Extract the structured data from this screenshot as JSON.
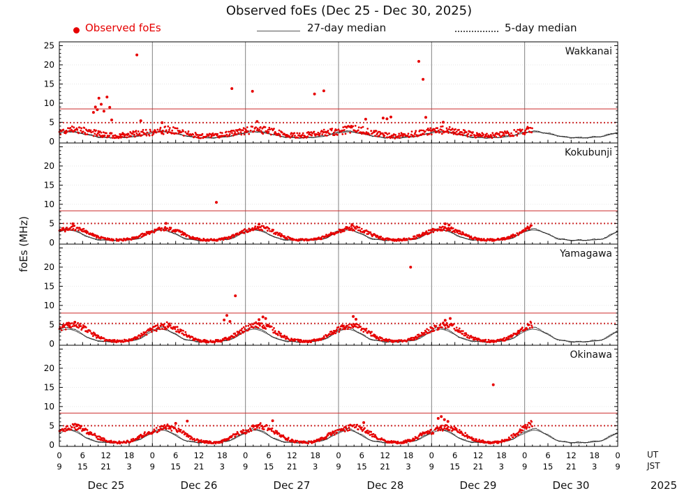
{
  "title": "Observed foEs (Dec 25 - Dec 30, 2025)",
  "ylabel": "foEs (MHz)",
  "legend": {
    "observed": "Observed foEs",
    "median27": "27-day median",
    "median5": "5-day median"
  },
  "colors": {
    "observed": "#e60000",
    "median27": "#555555",
    "median5": "#111111",
    "threshold": "#cc2a2a",
    "dayline": "#808080",
    "grid": "#e6e6e6",
    "frame": "#000000"
  },
  "x_axis": {
    "ut_label": "UT",
    "jst_label": "JST",
    "jst_offset": 9,
    "tick_step_hours": 6,
    "labeled_hours_ut": [
      0,
      6,
      12,
      18
    ],
    "labeled_hours_jst": [
      9,
      15,
      21,
      3
    ],
    "days": [
      "Dec 25",
      "Dec 26",
      "Dec 27",
      "Dec 28",
      "Dec 29",
      "Dec 30"
    ],
    "year": "2025",
    "total_hours": 144,
    "observed_end_hour": 122
  },
  "y_axis": {
    "min": 0,
    "max": 26,
    "unit": "MHz"
  },
  "chart_data": {
    "type": "scatter",
    "description": "Sporadic-E critical frequency foEs vs time, four ionosonde stations, red dots observed, black solid 27-day median, black dotted 5-day median, red horizontal lines are alert thresholds",
    "panels": [
      {
        "station": "Wakkanai",
        "scatter": 1.7,
        "threshold_solid_mhz": 8.5,
        "threshold_dotted_mhz": 4.9,
        "y_ticks": [
          0,
          5,
          10,
          15,
          20,
          25
        ],
        "observed_hourly": {
          "t_start": 0,
          "t_step": 2,
          "values": [
            2.6,
            3.0,
            3.2,
            2.9,
            2.4,
            2.0,
            1.7,
            1.5,
            1.6,
            1.8,
            2.0,
            2.3,
            2.4,
            2.8,
            3.0,
            2.7,
            2.2,
            1.8,
            1.5,
            1.4,
            1.5,
            1.7,
            2.1,
            2.4,
            2.7,
            3.1,
            3.0,
            2.8,
            2.3,
            1.9,
            1.6,
            1.5,
            1.7,
            1.9,
            2.2,
            2.5,
            2.5,
            3.0,
            3.3,
            3.0,
            2.5,
            2.0,
            1.6,
            1.4,
            1.5,
            1.8,
            2.1,
            2.4,
            2.6,
            2.9,
            3.1,
            2.8,
            2.3,
            1.9,
            1.6,
            1.5,
            1.6,
            1.8,
            2.0,
            2.3,
            2.8
          ]
        },
        "spikes": [
          [
            8.8,
            7.6
          ],
          [
            9.3,
            9.0
          ],
          [
            9.8,
            8.3
          ],
          [
            10.2,
            11.3
          ],
          [
            10.8,
            9.7
          ],
          [
            11.5,
            7.9
          ],
          [
            12.3,
            11.6
          ],
          [
            13.0,
            8.9
          ],
          [
            13.5,
            5.6
          ],
          [
            20.0,
            22.6
          ],
          [
            21.0,
            5.4
          ],
          [
            26.5,
            4.9
          ],
          [
            44.5,
            13.8
          ],
          [
            49.8,
            13.1
          ],
          [
            51.0,
            5.2
          ],
          [
            65.8,
            12.4
          ],
          [
            68.2,
            13.2
          ],
          [
            79.0,
            5.8
          ],
          [
            83.5,
            6.1
          ],
          [
            84.5,
            5.9
          ],
          [
            85.5,
            6.4
          ],
          [
            92.7,
            20.9
          ],
          [
            93.8,
            16.2
          ],
          [
            94.5,
            6.3
          ],
          [
            99.0,
            5.0
          ]
        ],
        "median27_diurnal": [
          2.2,
          2.4,
          2.5,
          2.5,
          2.4,
          2.2,
          2.0,
          1.8,
          1.6,
          1.4,
          1.2,
          1.1,
          1.0,
          1.0,
          0.9,
          0.9,
          1.0,
          1.0,
          1.1,
          1.2,
          1.3,
          1.5,
          1.8,
          2.0
        ],
        "median5_diurnal": [
          2.4,
          2.6,
          2.7,
          2.6,
          2.5,
          2.3,
          2.1,
          1.9,
          1.7,
          1.4,
          1.2,
          1.1,
          1.0,
          1.0,
          1.0,
          1.0,
          1.0,
          1.1,
          1.2,
          1.3,
          1.4,
          1.6,
          1.9,
          2.2
        ]
      },
      {
        "station": "Kokubunji",
        "scatter": 0.9,
        "threshold_solid_mhz": 8.3,
        "threshold_dotted_mhz": 5.0,
        "y_ticks": [
          0,
          5,
          10,
          15,
          20
        ],
        "observed_hourly": {
          "t_start": 0,
          "t_step": 2,
          "values": [
            3.0,
            3.6,
            3.8,
            3.3,
            2.4,
            1.5,
            0.9,
            0.7,
            0.7,
            0.9,
            1.3,
            2.2,
            2.9,
            3.5,
            3.7,
            3.2,
            2.3,
            1.4,
            0.8,
            0.7,
            0.7,
            0.9,
            1.4,
            2.3,
            3.1,
            3.7,
            3.9,
            3.4,
            2.5,
            1.5,
            0.9,
            0.7,
            0.7,
            0.9,
            1.3,
            2.2,
            3.0,
            3.6,
            3.8,
            3.3,
            2.4,
            1.5,
            0.9,
            0.7,
            0.7,
            1.0,
            1.4,
            2.3,
            3.0,
            3.5,
            3.7,
            3.2,
            2.3,
            1.4,
            0.8,
            0.7,
            0.7,
            0.9,
            1.3,
            2.2,
            3.4
          ]
        },
        "spikes": [
          [
            3.5,
            4.9
          ],
          [
            27.5,
            5.0
          ],
          [
            40.5,
            10.5
          ],
          [
            51.5,
            4.8
          ],
          [
            75.5,
            4.7
          ],
          [
            99.5,
            4.9
          ],
          [
            100.5,
            4.6
          ]
        ],
        "median27_diurnal": [
          2.8,
          3.1,
          3.3,
          3.2,
          3.0,
          2.6,
          2.2,
          1.7,
          1.3,
          1.0,
          0.8,
          0.7,
          0.6,
          0.6,
          0.6,
          0.6,
          0.6,
          0.7,
          0.7,
          0.8,
          0.9,
          1.2,
          1.8,
          2.4
        ],
        "median5_diurnal": [
          3.0,
          3.4,
          3.6,
          3.4,
          3.1,
          2.7,
          2.2,
          1.7,
          1.2,
          0.9,
          0.8,
          0.7,
          0.6,
          0.6,
          0.6,
          0.6,
          0.7,
          0.7,
          0.8,
          0.9,
          1.0,
          1.3,
          2.0,
          2.6
        ]
      },
      {
        "station": "Yamagawa",
        "scatter": 1.1,
        "threshold_solid_mhz": 8.0,
        "threshold_dotted_mhz": 5.3,
        "y_ticks": [
          0,
          5,
          10,
          15,
          20
        ],
        "observed_hourly": {
          "t_start": 0,
          "t_step": 2,
          "values": [
            3.8,
            4.6,
            5.0,
            4.2,
            2.9,
            1.7,
            1.0,
            0.7,
            0.6,
            0.9,
            1.5,
            2.7,
            3.6,
            4.4,
            4.8,
            4.0,
            2.8,
            1.6,
            0.9,
            0.6,
            0.6,
            0.9,
            1.6,
            2.8,
            3.9,
            4.7,
            5.1,
            4.3,
            3.0,
            1.7,
            1.0,
            0.7,
            0.6,
            0.9,
            1.5,
            2.7,
            3.7,
            4.5,
            4.9,
            4.1,
            2.9,
            1.6,
            0.9,
            0.7,
            0.6,
            1.0,
            1.6,
            2.8,
            3.8,
            4.5,
            4.9,
            4.2,
            2.9,
            1.7,
            1.0,
            0.7,
            0.6,
            0.9,
            1.5,
            2.7,
            4.2
          ]
        },
        "spikes": [
          [
            2.5,
            5.3
          ],
          [
            4.0,
            5.6
          ],
          [
            42.5,
            6.2
          ],
          [
            43.2,
            7.4
          ],
          [
            44.0,
            5.8
          ],
          [
            45.4,
            12.5
          ],
          [
            51.5,
            6.3
          ],
          [
            52.5,
            7.0
          ],
          [
            53.2,
            6.6
          ],
          [
            75.8,
            7.1
          ],
          [
            76.5,
            6.4
          ],
          [
            90.6,
            20.0
          ],
          [
            99.5,
            6.1
          ],
          [
            100.8,
            6.6
          ]
        ],
        "median27_diurnal": [
          3.2,
          3.6,
          3.8,
          3.7,
          3.4,
          2.9,
          2.4,
          1.8,
          1.3,
          1.0,
          0.8,
          0.7,
          0.6,
          0.5,
          0.5,
          0.5,
          0.6,
          0.6,
          0.7,
          0.8,
          1.0,
          1.4,
          2.0,
          2.7
        ],
        "median5_diurnal": [
          3.5,
          4.0,
          4.3,
          4.1,
          3.7,
          3.1,
          2.5,
          1.8,
          1.3,
          1.0,
          0.8,
          0.6,
          0.5,
          0.5,
          0.5,
          0.5,
          0.6,
          0.7,
          0.8,
          0.9,
          1.1,
          1.5,
          2.2,
          3.0
        ]
      },
      {
        "station": "Okinawa",
        "scatter": 1.0,
        "threshold_solid_mhz": 8.3,
        "threshold_dotted_mhz": 5.0,
        "y_ticks": [
          0,
          5,
          10,
          15,
          20
        ],
        "observed_hourly": {
          "t_start": 0,
          "t_step": 2,
          "values": [
            3.4,
            4.3,
            4.8,
            4.2,
            3.1,
            1.9,
            1.1,
            0.7,
            0.6,
            0.9,
            1.7,
            2.9,
            3.3,
            4.2,
            4.7,
            4.1,
            3.0,
            1.8,
            1.0,
            0.7,
            0.6,
            0.9,
            1.8,
            3.0,
            3.5,
            4.4,
            4.9,
            4.3,
            3.2,
            1.9,
            1.1,
            0.7,
            0.6,
            0.9,
            1.7,
            2.9,
            3.4,
            4.3,
            4.8,
            4.2,
            3.1,
            1.8,
            1.0,
            0.7,
            0.6,
            1.0,
            1.8,
            3.0,
            3.4,
            4.2,
            4.7,
            4.1,
            3.0,
            1.8,
            1.1,
            0.7,
            0.6,
            0.9,
            1.7,
            2.9,
            4.6
          ]
        },
        "spikes": [
          [
            4.5,
            5.2
          ],
          [
            30.0,
            5.6
          ],
          [
            33.0,
            6.2
          ],
          [
            55.0,
            6.3
          ],
          [
            78.5,
            5.8
          ],
          [
            97.7,
            6.9
          ],
          [
            98.5,
            7.4
          ],
          [
            99.3,
            6.6
          ],
          [
            100.2,
            6.1
          ],
          [
            111.9,
            15.7
          ]
        ],
        "median27_diurnal": [
          3.0,
          3.5,
          3.8,
          3.8,
          3.5,
          3.0,
          2.4,
          1.8,
          1.3,
          1.0,
          0.8,
          0.7,
          0.6,
          0.6,
          0.5,
          0.6,
          0.6,
          0.7,
          0.8,
          0.9,
          1.1,
          1.5,
          2.1,
          2.6
        ],
        "median5_diurnal": [
          3.3,
          3.9,
          4.2,
          4.1,
          3.7,
          3.2,
          2.6,
          1.9,
          1.4,
          1.0,
          0.8,
          0.7,
          0.6,
          0.6,
          0.6,
          0.6,
          0.7,
          0.8,
          0.9,
          1.0,
          1.2,
          1.6,
          2.3,
          2.9
        ]
      }
    ]
  }
}
